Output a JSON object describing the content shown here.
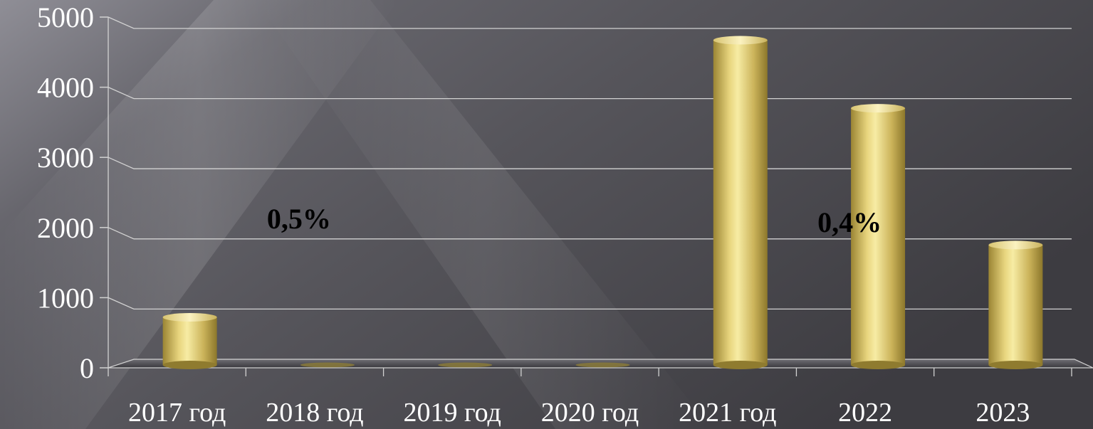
{
  "chart_data": {
    "type": "bar",
    "categories": [
      "2017 год",
      "2018 год",
      "2019 год",
      "2020 год",
      "2021 год",
      "2022",
      "2023"
    ],
    "values": [
      700,
      0,
      0,
      0,
      4650,
      3680,
      1730
    ],
    "ylim": [
      0,
      5000
    ],
    "yticks": [
      "0",
      "1000",
      "2000",
      "3000",
      "4000",
      "5000"
    ],
    "grid": true,
    "legend": "none",
    "annotations": [
      {
        "text": "0,5%",
        "x": "2018 год",
        "y": 2150
      },
      {
        "text": "0,4%",
        "x": "2022",
        "y": 2100
      }
    ],
    "colors": {
      "bar": "#d9c36a",
      "bar_highlight": "#f6ea9f",
      "bar_shadow": "#8f7b2f",
      "grid": "#d2d2d2",
      "text": "#ffffff",
      "annotation": "#000000"
    }
  }
}
